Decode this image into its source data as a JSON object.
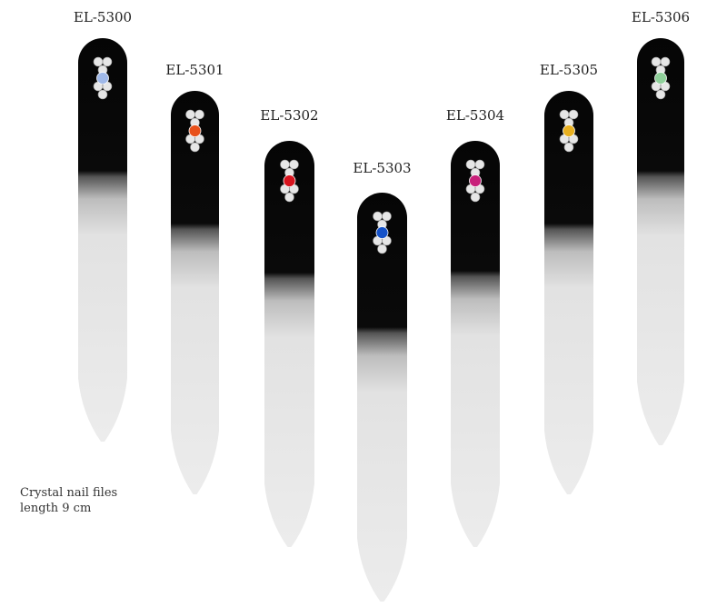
{
  "products": [
    {
      "code": "EL-5300",
      "gem_color": "#9fb8e8"
    },
    {
      "code": "EL-5301",
      "gem_color": "#e8501a"
    },
    {
      "code": "EL-5302",
      "gem_color": "#d8141e"
    },
    {
      "code": "EL-5303",
      "gem_color": "#1552c8"
    },
    {
      "code": "EL-5304",
      "gem_color": "#c8207a"
    },
    {
      "code": "EL-5305",
      "gem_color": "#e8b020"
    },
    {
      "code": "EL-5306",
      "gem_color": "#8fd09a"
    }
  ],
  "caption": {
    "line1": "Crystal nail files",
    "line2": "length 9 cm"
  }
}
